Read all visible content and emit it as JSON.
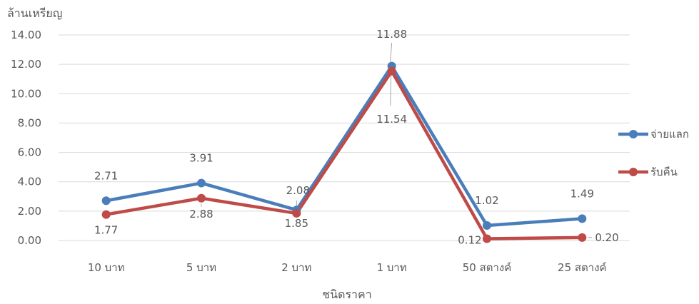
{
  "chart_data": {
    "type": "line",
    "title": "",
    "ylabel": "ล้านเหรียญ",
    "xlabel": "ชนิดราคา",
    "categories": [
      "10 บาท",
      "5 บาท",
      "2 บาท",
      "1 บาท",
      "50 สตางค์",
      "25 สตางค์"
    ],
    "ylim": [
      0,
      14
    ],
    "yticks": [
      0,
      2,
      4,
      6,
      8,
      10,
      12,
      14
    ],
    "ytick_labels": [
      "0.00",
      "2.00",
      "4.00",
      "6.00",
      "8.00",
      "10.00",
      "12.00",
      "14.00"
    ],
    "grid": true,
    "legend_position": "right",
    "series": [
      {
        "name": "จ่ายแลก",
        "color": "#4a7ebb",
        "values": [
          2.71,
          3.91,
          2.08,
          11.88,
          1.02,
          1.49
        ],
        "labels": [
          "2.71",
          "3.91",
          "2.08",
          "11.88",
          "1.02",
          "1.49"
        ]
      },
      {
        "name": "รับคืน",
        "color": "#be4b48",
        "values": [
          1.77,
          2.88,
          1.85,
          11.54,
          0.12,
          0.2
        ],
        "labels": [
          "1.77",
          "2.88",
          "1.85",
          "11.54",
          "0.12",
          "0.20"
        ]
      }
    ]
  }
}
